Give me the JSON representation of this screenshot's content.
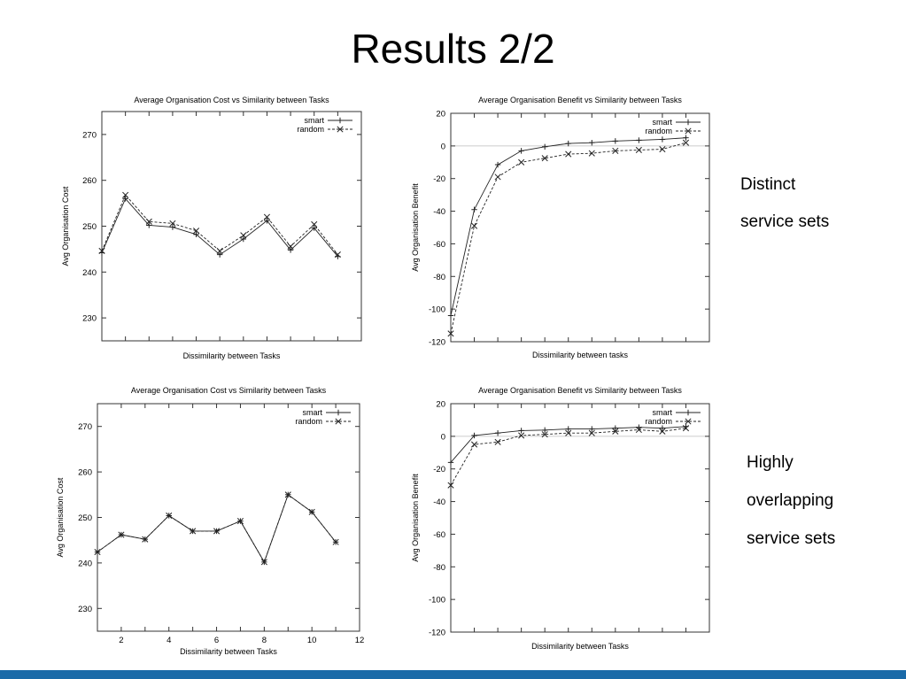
{
  "slide": {
    "title": "Results 2/2",
    "labels": {
      "top": [
        "Distinct",
        "service sets"
      ],
      "bottom": [
        "Highly",
        "overlapping",
        "service sets"
      ]
    },
    "footer_color": "#1a6aa8"
  },
  "chart_data": [
    {
      "type": "line",
      "title": "Average Organisation Cost vs Similarity between Tasks",
      "xlabel": "Dissimilarity between Tasks",
      "ylabel": "Avg Organisation Cost",
      "xlim": [
        1,
        12
      ],
      "ylim": [
        225,
        275
      ],
      "yticks": [
        230,
        240,
        250,
        260,
        270
      ],
      "xticks": [],
      "x": [
        1,
        2,
        3,
        4,
        5,
        6,
        7,
        8,
        9,
        10,
        11
      ],
      "series": [
        {
          "name": "smart",
          "marker": "plus",
          "dash": false,
          "values": [
            244.2,
            256.0,
            250.2,
            249.8,
            248.2,
            243.8,
            247.2,
            251.2,
            244.8,
            249.6,
            243.4
          ]
        },
        {
          "name": "random",
          "marker": "cross",
          "dash": true,
          "values": [
            244.6,
            256.8,
            251.0,
            250.6,
            249.0,
            244.6,
            248.0,
            252.0,
            245.6,
            250.4,
            243.8
          ]
        }
      ],
      "legend": "top-right"
    },
    {
      "type": "line",
      "title": "Average Organisation Benefit vs Similarity between Tasks",
      "xlabel": "Dissimilarity between tasks",
      "ylabel": "Avg Organisation Benefit",
      "xlim": [
        1,
        12
      ],
      "ylim": [
        -120,
        20
      ],
      "yticks": [
        20,
        0,
        -20,
        -40,
        -60,
        -80,
        -100,
        -120
      ],
      "xticks": [],
      "zero_line": true,
      "x": [
        1,
        2,
        3,
        4,
        5,
        6,
        7,
        8,
        9,
        10,
        11
      ],
      "series": [
        {
          "name": "smart",
          "marker": "plus",
          "dash": false,
          "values": [
            -104,
            -39,
            -11.5,
            -3,
            -0.5,
            1.5,
            2,
            3,
            3.5,
            4,
            5
          ]
        },
        {
          "name": "random",
          "marker": "cross",
          "dash": true,
          "values": [
            -115,
            -49,
            -19,
            -10,
            -7.5,
            -5,
            -4.5,
            -3,
            -2.5,
            -2,
            2
          ]
        }
      ],
      "legend": "top-right"
    },
    {
      "type": "line",
      "title": "Average Organisation Cost vs Similarity between Tasks",
      "xlabel": "Dissimilarity between Tasks",
      "ylabel": "Avg Organisation Cost",
      "xlim": [
        1,
        12
      ],
      "ylim": [
        225,
        275
      ],
      "yticks": [
        230,
        240,
        250,
        260,
        270
      ],
      "xticks": [
        2,
        4,
        6,
        8,
        10,
        12
      ],
      "x": [
        1,
        2,
        3,
        4,
        5,
        6,
        7,
        8,
        9,
        10,
        11
      ],
      "series": [
        {
          "name": "smart",
          "marker": "plus",
          "dash": false,
          "values": [
            242.4,
            246.2,
            245.2,
            250.4,
            247.0,
            247.0,
            249.2,
            240.2,
            255.0,
            251.2,
            244.6
          ]
        },
        {
          "name": "random",
          "marker": "cross",
          "dash": true,
          "values": [
            242.4,
            246.2,
            245.2,
            250.4,
            247.0,
            247.0,
            249.2,
            240.2,
            255.0,
            251.2,
            244.6
          ]
        }
      ],
      "legend": "top-right"
    },
    {
      "type": "line",
      "title": "Average Organisation Benefit vs Similarity between Tasks",
      "xlabel": "Dissimilarity between Tasks",
      "ylabel": "Avg Organisation Benefit",
      "xlim": [
        1,
        12
      ],
      "ylim": [
        -120,
        20
      ],
      "yticks": [
        20,
        0,
        -20,
        -40,
        -60,
        -80,
        -100,
        -120
      ],
      "xticks": [],
      "zero_line": true,
      "x": [
        1,
        2,
        3,
        4,
        5,
        6,
        7,
        8,
        9,
        10,
        11
      ],
      "series": [
        {
          "name": "smart",
          "marker": "plus",
          "dash": false,
          "values": [
            -16,
            0.5,
            2,
            3.5,
            3.8,
            4.5,
            4.5,
            5,
            5.5,
            5,
            6
          ]
        },
        {
          "name": "random",
          "marker": "cross",
          "dash": true,
          "values": [
            -30,
            -5,
            -3.5,
            0.5,
            1.2,
            2,
            2,
            3,
            4,
            3,
            5
          ]
        }
      ],
      "legend": "top-right"
    }
  ]
}
